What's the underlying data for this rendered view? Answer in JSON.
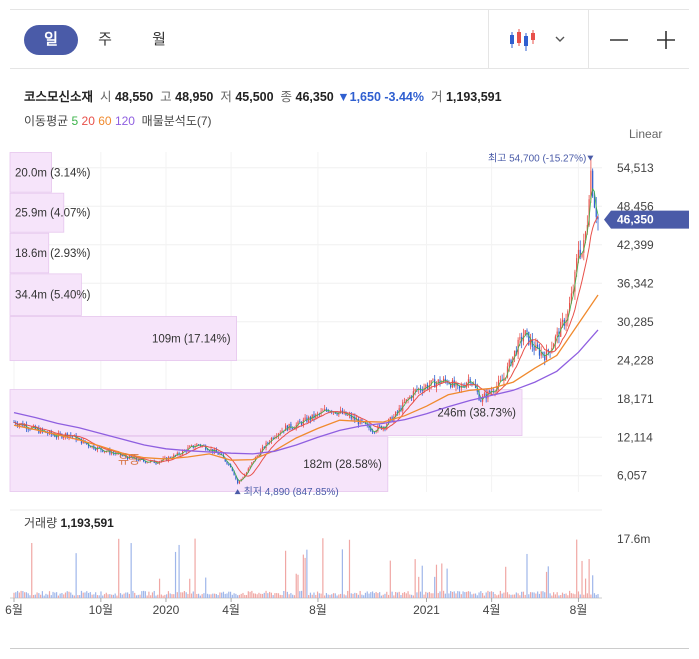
{
  "periods": [
    "일",
    "주",
    "월"
  ],
  "active_period": "일",
  "toolbar": {
    "candle_icon": "candlestick-icon",
    "dropdown_icon": "chevron-down-icon",
    "zoom_out_icon": "minus-icon",
    "zoom_in_icon": "plus-icon"
  },
  "stock": {
    "name": "코스모신소재",
    "open_label": "시",
    "open": "48,550",
    "high_label": "고",
    "high": "48,950",
    "low_label": "저",
    "low": "45,500",
    "close_label": "종",
    "close": "46,350",
    "change": "▼1,650 -3.44%",
    "volume_label": "거",
    "volume": "1,193,591"
  },
  "ma": {
    "label": "이동평균",
    "p5": "5",
    "p20": "20",
    "p60": "60",
    "p120": "120",
    "analysis": "매물분석도(7)"
  },
  "scale_label": "Linear",
  "colors": {
    "up": "#e8504a",
    "down": "#2f5fd0",
    "ma5": "#3bb34a",
    "ma20": "#e8504a",
    "ma60": "#f08a2e",
    "ma120": "#8f5fe0",
    "profile": "#f6e4fa",
    "accent": "#4a5ba8"
  },
  "chart_data": {
    "type": "line",
    "price_axis": {
      "ticks": [
        54513,
        48456,
        42399,
        36342,
        30285,
        24228,
        18171,
        12114,
        6057
      ],
      "range": [
        3500,
        57000
      ],
      "scale": "linear"
    },
    "x_ticks": [
      "6월",
      "10월",
      "2020",
      "4월",
      "8월",
      "2021",
      "4월",
      "8월"
    ],
    "x_tick_months": [
      0,
      4,
      7,
      10,
      14,
      19,
      22,
      26
    ],
    "months_span": 26.9,
    "current_price_label": "46,350",
    "current_price": 46350,
    "high_marker": {
      "label": "최고 54,700 (-15.27%)",
      "price": 54700,
      "month": 26.55
    },
    "low_marker": {
      "label": "최저 4,890 (847.85%)",
      "price": 4890,
      "month": 10.3
    },
    "annotation": {
      "label": "유증",
      "price": 8600,
      "month": 5.3
    },
    "volume_profile": [
      {
        "label": "20.0m (3.14%)",
        "low": 50600,
        "high": 57000,
        "pct": 3.14
      },
      {
        "label": "25.9m (4.07%)",
        "low": 44300,
        "high": 50600,
        "pct": 4.07
      },
      {
        "label": "18.6m (2.93%)",
        "low": 37900,
        "high": 44300,
        "pct": 2.93
      },
      {
        "label": "34.4m (5.40%)",
        "low": 31200,
        "high": 37900,
        "pct": 5.4
      },
      {
        "label": "109m (17.14%)",
        "low": 24100,
        "high": 31200,
        "pct": 17.14
      },
      {
        "label": "246m (38.73%)",
        "low": 12300,
        "high": 19700,
        "pct": 38.73
      },
      {
        "label": "182m (28.58%)",
        "low": 3500,
        "high": 12300,
        "pct": 28.58
      }
    ],
    "price_series": [
      [
        0,
        14500
      ],
      [
        0.5,
        14000
      ],
      [
        1,
        13300
      ],
      [
        1.5,
        12800
      ],
      [
        2,
        12300
      ],
      [
        2.5,
        12600
      ],
      [
        3,
        11700
      ],
      [
        3.5,
        10800
      ],
      [
        4,
        10200
      ],
      [
        4.5,
        9700
      ],
      [
        5,
        9200
      ],
      [
        5.5,
        8700
      ],
      [
        6,
        8400
      ],
      [
        6.5,
        8200
      ],
      [
        7,
        8700
      ],
      [
        7.5,
        9300
      ],
      [
        8,
        10300
      ],
      [
        8.5,
        11000
      ],
      [
        9,
        10300
      ],
      [
        9.5,
        9300
      ],
      [
        10,
        7500
      ],
      [
        10.3,
        4890
      ],
      [
        10.7,
        6500
      ],
      [
        11,
        8300
      ],
      [
        11.5,
        10500
      ],
      [
        12,
        12500
      ],
      [
        12.5,
        13600
      ],
      [
        13,
        14000
      ],
      [
        13.5,
        14900
      ],
      [
        14,
        15600
      ],
      [
        14.5,
        16600
      ],
      [
        15,
        16000
      ],
      [
        15.5,
        15300
      ],
      [
        16,
        14300
      ],
      [
        16.5,
        13300
      ],
      [
        17,
        13800
      ],
      [
        17.5,
        15300
      ],
      [
        18,
        17500
      ],
      [
        18.5,
        19500
      ],
      [
        19,
        20200
      ],
      [
        19.5,
        20800
      ],
      [
        20,
        21000
      ],
      [
        20.5,
        19500
      ],
      [
        21,
        21500
      ],
      [
        21.5,
        18000
      ],
      [
        22,
        19500
      ],
      [
        22.5,
        21000
      ],
      [
        23,
        25000
      ],
      [
        23.5,
        28500
      ],
      [
        24,
        26000
      ],
      [
        24.5,
        25000
      ],
      [
        25,
        28000
      ],
      [
        25.5,
        31500
      ],
      [
        25.8,
        36000
      ],
      [
        26,
        42000
      ],
      [
        26.2,
        41000
      ],
      [
        26.4,
        46000
      ],
      [
        26.55,
        54700
      ],
      [
        26.7,
        50000
      ],
      [
        26.9,
        46350
      ]
    ],
    "ma60_series": [
      [
        0,
        14000
      ],
      [
        1,
        13300
      ],
      [
        2,
        12500
      ],
      [
        3,
        11700
      ],
      [
        4,
        10700
      ],
      [
        5,
        9600
      ],
      [
        6,
        8900
      ],
      [
        7,
        8700
      ],
      [
        8,
        9000
      ],
      [
        9,
        9500
      ],
      [
        10,
        8500
      ],
      [
        11,
        8600
      ],
      [
        12,
        10000
      ],
      [
        13,
        12000
      ],
      [
        14,
        13500
      ],
      [
        15,
        14800
      ],
      [
        16,
        14600
      ],
      [
        17,
        14500
      ],
      [
        18,
        15500
      ],
      [
        19,
        17000
      ],
      [
        20,
        18800
      ],
      [
        21,
        19500
      ],
      [
        22,
        19800
      ],
      [
        23,
        20800
      ],
      [
        24,
        23000
      ],
      [
        25,
        25000
      ],
      [
        26,
        30000
      ],
      [
        26.9,
        34500
      ]
    ],
    "ma120_series": [
      [
        0,
        16000
      ],
      [
        1,
        15200
      ],
      [
        2,
        14300
      ],
      [
        3,
        13600
      ],
      [
        4,
        12700
      ],
      [
        5,
        11800
      ],
      [
        6,
        10900
      ],
      [
        7,
        10300
      ],
      [
        8,
        10000
      ],
      [
        9,
        9800
      ],
      [
        10,
        9600
      ],
      [
        11,
        9500
      ],
      [
        12,
        9900
      ],
      [
        13,
        10900
      ],
      [
        14,
        12100
      ],
      [
        15,
        13200
      ],
      [
        16,
        13900
      ],
      [
        17,
        14300
      ],
      [
        18,
        14900
      ],
      [
        19,
        15800
      ],
      [
        20,
        16900
      ],
      [
        21,
        17900
      ],
      [
        22,
        18700
      ],
      [
        23,
        19500
      ],
      [
        24,
        20800
      ],
      [
        25,
        22500
      ],
      [
        26,
        25500
      ],
      [
        26.9,
        29000
      ]
    ],
    "volume": {
      "label": "거래량",
      "value": "1,193,591",
      "axis_tick": "17.6m",
      "max": 17600000
    },
    "grid": true
  }
}
